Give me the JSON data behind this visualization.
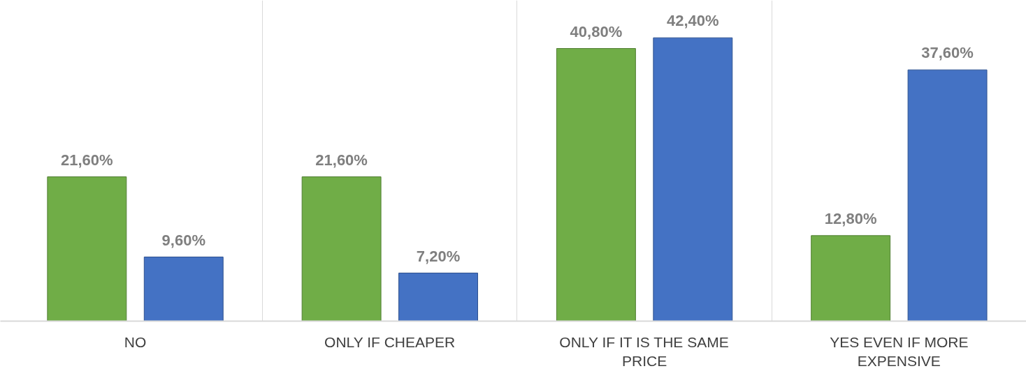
{
  "chart_data": {
    "type": "bar",
    "categories": [
      "NO",
      "ONLY IF CHEAPER",
      "ONLY IF IT IS THE SAME PRICE",
      "YES EVEN IF MORE EXPENSIVE"
    ],
    "series": [
      {
        "color": "#70ad47",
        "values": [
          21.6,
          21.6,
          40.8,
          12.8
        ],
        "value_labels": [
          "21,60%",
          "21,60%",
          "40,80%",
          "12,80%"
        ]
      },
      {
        "color": "#4472c4",
        "values": [
          9.6,
          7.2,
          42.4,
          37.6
        ],
        "value_labels": [
          "9,60%",
          "7,20%",
          "42,40%",
          "37,60%"
        ]
      }
    ],
    "ylim": [
      0,
      48
    ],
    "grid": "x",
    "tick_labels": "x"
  }
}
